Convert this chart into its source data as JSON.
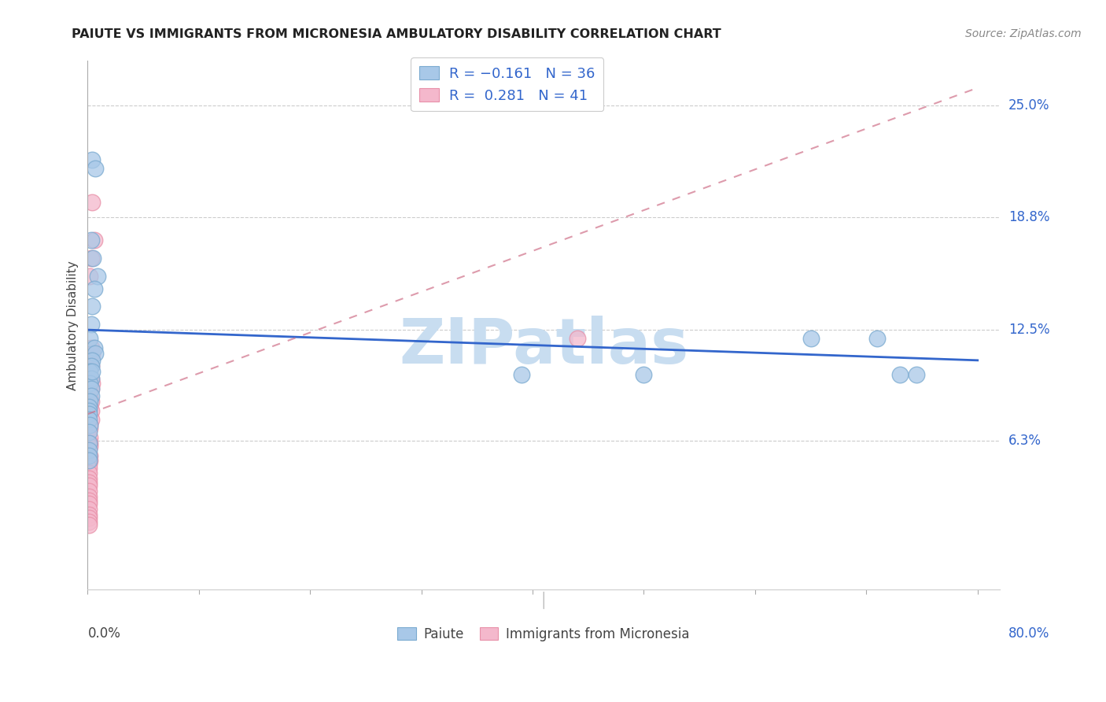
{
  "title": "PAIUTE VS IMMIGRANTS FROM MICRONESIA AMBULATORY DISABILITY CORRELATION CHART",
  "source": "Source: ZipAtlas.com",
  "ylabel": "Ambulatory Disability",
  "ytick_vals": [
    0.063,
    0.125,
    0.188,
    0.25
  ],
  "ytick_labels": [
    "6.3%",
    "12.5%",
    "18.8%",
    "25.0%"
  ],
  "xlim": [
    0.0,
    0.82
  ],
  "ylim": [
    -0.02,
    0.275
  ],
  "paiute_color": "#a8c8e8",
  "paiute_edge": "#7aaad0",
  "micronesia_color": "#f4b8cc",
  "micronesia_edge": "#e890a8",
  "paiute_line_color": "#3366cc",
  "micronesia_line_color": "#cc6680",
  "watermark_color": "#c8ddf0",
  "paiute_x": [
    0.004,
    0.007,
    0.003,
    0.005,
    0.009,
    0.006,
    0.004,
    0.003,
    0.002,
    0.006,
    0.007,
    0.004,
    0.003,
    0.002,
    0.003,
    0.002,
    0.003,
    0.004,
    0.003,
    0.002,
    0.001,
    0.001,
    0.001,
    0.001,
    0.002,
    0.001,
    0.001,
    0.001,
    0.001,
    0.001,
    0.39,
    0.5,
    0.65,
    0.71,
    0.73,
    0.745
  ],
  "paiute_y": [
    0.22,
    0.215,
    0.175,
    0.165,
    0.155,
    0.148,
    0.138,
    0.128,
    0.12,
    0.115,
    0.112,
    0.108,
    0.105,
    0.102,
    0.098,
    0.095,
    0.092,
    0.102,
    0.088,
    0.085,
    0.082,
    0.08,
    0.078,
    0.075,
    0.072,
    0.068,
    0.062,
    0.058,
    0.055,
    0.052,
    0.1,
    0.1,
    0.12,
    0.12,
    0.1,
    0.1
  ],
  "micronesia_x": [
    0.004,
    0.006,
    0.003,
    0.002,
    0.003,
    0.004,
    0.002,
    0.003,
    0.002,
    0.003,
    0.004,
    0.003,
    0.002,
    0.002,
    0.003,
    0.002,
    0.003,
    0.003,
    0.002,
    0.002,
    0.002,
    0.002,
    0.002,
    0.002,
    0.002,
    0.001,
    0.001,
    0.001,
    0.001,
    0.001,
    0.001,
    0.001,
    0.001,
    0.001,
    0.001,
    0.001,
    0.001,
    0.001,
    0.001,
    0.001,
    0.44
  ],
  "micronesia_y": [
    0.196,
    0.175,
    0.165,
    0.155,
    0.115,
    0.112,
    0.108,
    0.105,
    0.1,
    0.098,
    0.095,
    0.092,
    0.09,
    0.088,
    0.085,
    0.082,
    0.08,
    0.075,
    0.072,
    0.07,
    0.065,
    0.062,
    0.06,
    0.055,
    0.052,
    0.05,
    0.048,
    0.045,
    0.042,
    0.04,
    0.038,
    0.035,
    0.032,
    0.03,
    0.028,
    0.025,
    0.022,
    0.02,
    0.018,
    0.016,
    0.12
  ],
  "paiute_trend": [
    0.125,
    0.108
  ],
  "micro_trend": [
    0.078,
    0.26
  ],
  "paiute_trend_x": [
    0.0,
    0.8
  ],
  "micro_trend_x": [
    0.0,
    0.8
  ]
}
